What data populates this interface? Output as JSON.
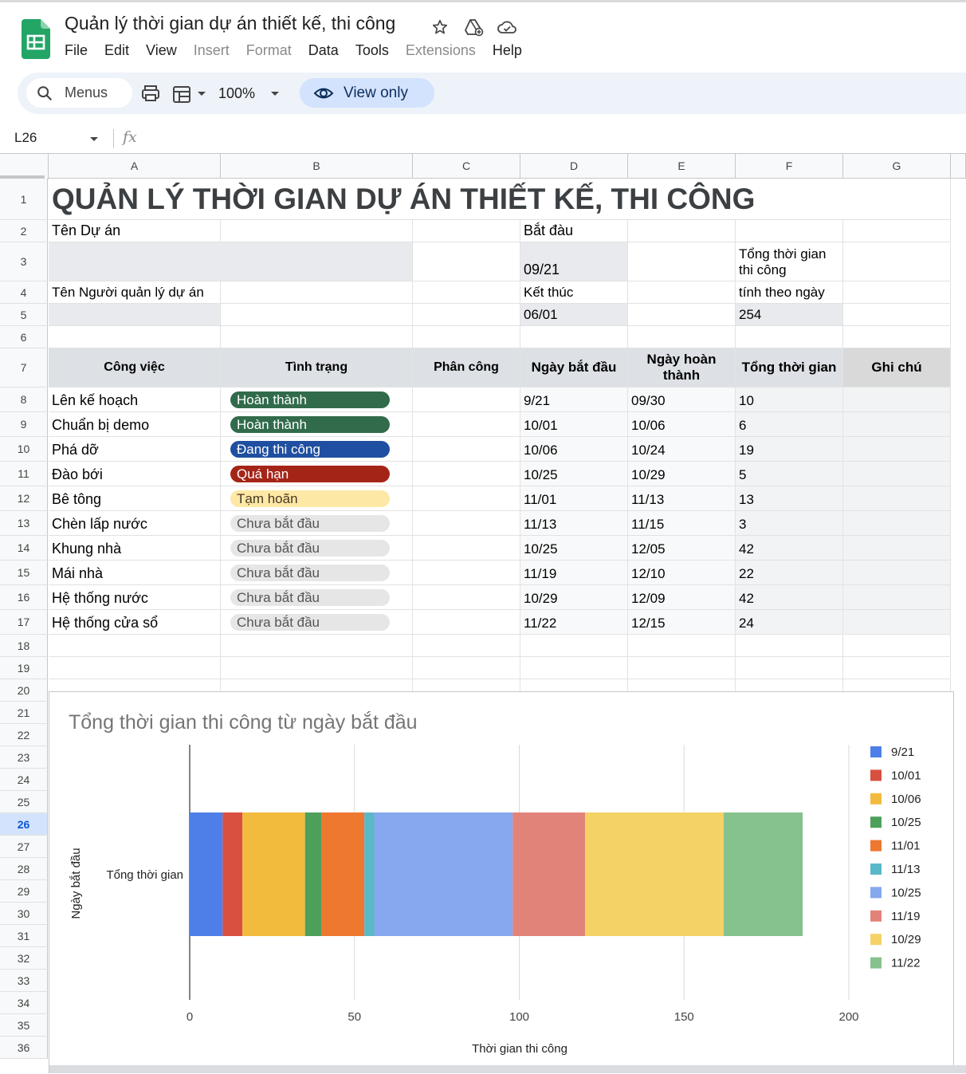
{
  "doc": {
    "title": "Quản lý thời gian dự án thiết kế, thi công",
    "menu": [
      {
        "label": "File",
        "enabled": true
      },
      {
        "label": "Edit",
        "enabled": true
      },
      {
        "label": "View",
        "enabled": true
      },
      {
        "label": "Insert",
        "enabled": false
      },
      {
        "label": "Format",
        "enabled": false
      },
      {
        "label": "Data",
        "enabled": true
      },
      {
        "label": "Tools",
        "enabled": true
      },
      {
        "label": "Extensions",
        "enabled": false
      },
      {
        "label": "Help",
        "enabled": true
      }
    ]
  },
  "toolbar": {
    "search_label": "Menus",
    "zoom": "100%",
    "view_only_label": "View only"
  },
  "formula_bar": {
    "name_box": "L26",
    "fx": "fx"
  },
  "columns": [
    "A",
    "B",
    "C",
    "D",
    "E",
    "F",
    "G"
  ],
  "rows": [
    "1",
    "2",
    "3",
    "4",
    "5",
    "6",
    "7",
    "8",
    "9",
    "10",
    "11",
    "12",
    "13",
    "14",
    "15",
    "16",
    "17",
    "18",
    "19",
    "20",
    "21",
    "22",
    "23",
    "24",
    "25",
    "26",
    "27",
    "28",
    "29",
    "30",
    "31",
    "32",
    "33",
    "34",
    "35",
    "36"
  ],
  "selected_row": "26",
  "sheet": {
    "main_title": "QUẢN LÝ THỜI GIAN DỰ ÁN THIẾT KẾ, THI CÔNG",
    "project_name_label": "Tên Dự án",
    "manager_label": "Tên Người quản lý dự án",
    "start_label": "Bắt đàu",
    "start_value": "09/21",
    "end_label": "Kết thúc",
    "end_value": "06/01",
    "total_label_line1": "Tổng thời gian",
    "total_label_line2": "thi công",
    "days_label": "tính theo ngày",
    "days_value": "254",
    "headers": {
      "task": "Công việc",
      "status": "Tình trạng",
      "assign": "Phân công",
      "start": "Ngày bắt đầu",
      "end": "Ngày hoàn thành",
      "duration": "Tổng thời gian",
      "note": "Ghi chú"
    },
    "tasks": [
      {
        "task": "Lên kế hoạch",
        "status": "Hoàn thành",
        "status_kind": "green",
        "start": "9/21",
        "end": "09/30",
        "duration": "10"
      },
      {
        "task": "Chuẩn bị demo",
        "status": "Hoàn thành",
        "status_kind": "green",
        "start": "10/01",
        "end": "10/06",
        "duration": "6"
      },
      {
        "task": "Phá dỡ",
        "status": "Đang thi công",
        "status_kind": "blue",
        "start": "10/06",
        "end": "10/24",
        "duration": "19"
      },
      {
        "task": "Đào bới",
        "status": "Quá hạn",
        "status_kind": "red",
        "start": "10/25",
        "end": "10/29",
        "duration": "5"
      },
      {
        "task": "Bê tông",
        "status": "Tạm hoãn",
        "status_kind": "yellow",
        "start": "11/01",
        "end": "11/13",
        "duration": "13"
      },
      {
        "task": "Chèn lấp nước",
        "status": "Chưa bắt đầu",
        "status_kind": "gray",
        "start": "11/13",
        "end": "11/15",
        "duration": "3"
      },
      {
        "task": "Khung nhà",
        "status": "Chưa bắt đầu",
        "status_kind": "gray",
        "start": "10/25",
        "end": "12/05",
        "duration": "42"
      },
      {
        "task": "Mái nhà",
        "status": "Chưa bắt đầu",
        "status_kind": "gray",
        "start": "11/19",
        "end": "12/10",
        "duration": "22"
      },
      {
        "task": "Hệ thống nước",
        "status": "Chưa bắt đầu",
        "status_kind": "gray",
        "start": "10/29",
        "end": "12/09",
        "duration": "42"
      },
      {
        "task": "Hệ thống cửa sổ",
        "status": "Chưa bắt đầu",
        "status_kind": "gray",
        "start": "11/22",
        "end": "12/15",
        "duration": "24"
      }
    ]
  },
  "chart_data": {
    "type": "bar",
    "orientation": "horizontal",
    "stacked": true,
    "title": "Tổng thời gian thi công từ ngày bắt đầu",
    "xlabel": "Thời gian thi công",
    "ylabel": "Ngày bắt đầu",
    "categories": [
      "Tổng thời gian"
    ],
    "xlim": [
      0,
      200
    ],
    "xticks": [
      0,
      50,
      100,
      150,
      200
    ],
    "grid": true,
    "legend_position": "right",
    "series": [
      {
        "name": "9/21",
        "values": [
          10
        ],
        "color": "#4e7fe8"
      },
      {
        "name": "10/01",
        "values": [
          6
        ],
        "color": "#d95040"
      },
      {
        "name": "10/06",
        "values": [
          19
        ],
        "color": "#f2bb3e"
      },
      {
        "name": "10/25",
        "values": [
          5
        ],
        "color": "#4da05a"
      },
      {
        "name": "11/01",
        "values": [
          13
        ],
        "color": "#ee7830"
      },
      {
        "name": "11/13",
        "values": [
          3
        ],
        "color": "#5ab8c8"
      },
      {
        "name": "10/25",
        "values": [
          42
        ],
        "color": "#85a8ef"
      },
      {
        "name": "11/19",
        "values": [
          22
        ],
        "color": "#e2837a"
      },
      {
        "name": "10/29",
        "values": [
          42
        ],
        "color": "#f5d266"
      },
      {
        "name": "11/22",
        "values": [
          24
        ],
        "color": "#85c28e"
      }
    ]
  }
}
